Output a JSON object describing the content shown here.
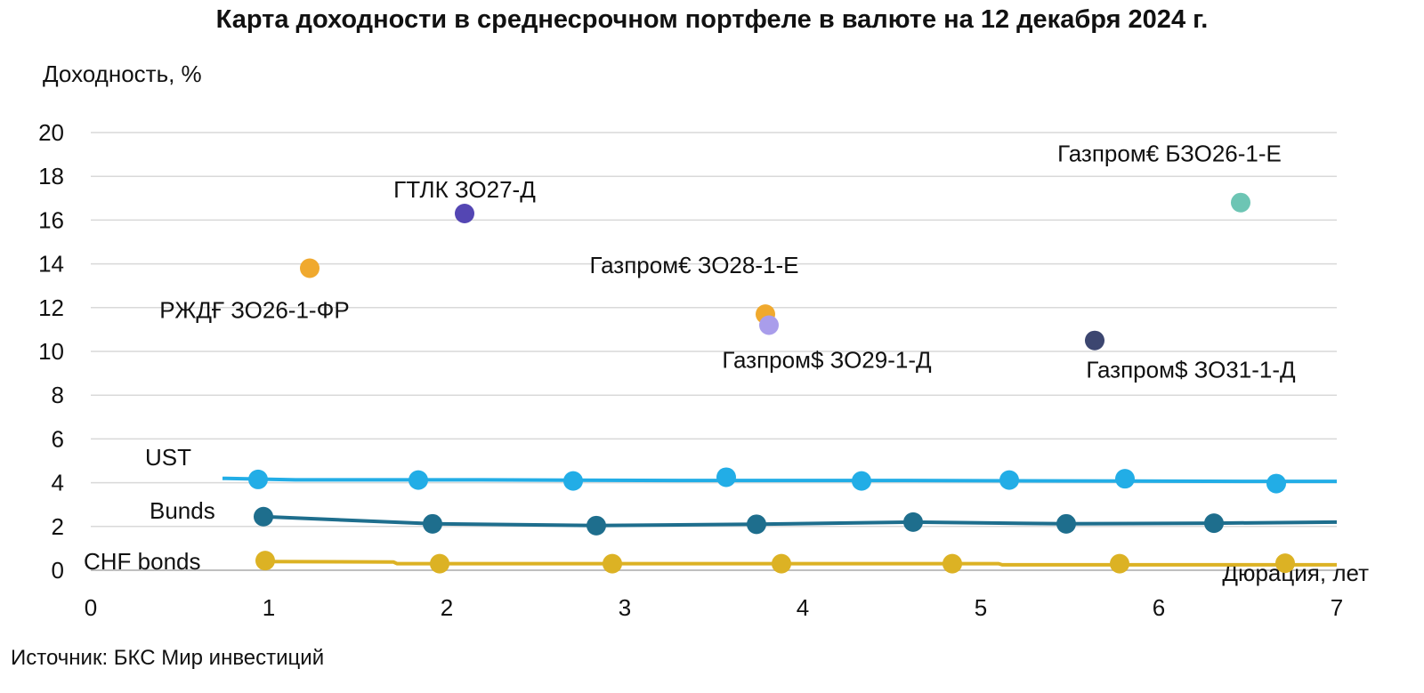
{
  "chart_data": {
    "type": "scatter",
    "title": "Карта доходности в среднесрочном портфеле в валюте на 12 декабря 2024 г.",
    "ylabel": "Доходность, %",
    "xlabel": "Дюрация, лет",
    "xlim": [
      0,
      7
    ],
    "ylim": [
      0,
      20
    ],
    "x_ticks": [
      0,
      1,
      2,
      3,
      4,
      5,
      6,
      7
    ],
    "y_ticks": [
      0,
      2,
      4,
      6,
      8,
      10,
      12,
      14,
      16,
      18,
      20
    ],
    "grid": "horizontal",
    "points": [
      {
        "label": "РЖДҒ ЗО26-1-ФР",
        "x": 1.23,
        "y": 13.8,
        "color": "#F0A92E",
        "label_pos": "below-left"
      },
      {
        "label": "ГТЛК ЗО27-Д",
        "x": 2.1,
        "y": 16.3,
        "color": "#5446B3",
        "label_pos": "above"
      },
      {
        "label": "Газпром€ ЗО28-1-Е",
        "x": 3.79,
        "y": 11.7,
        "color": "#F0A92E",
        "label_pos": "above-left"
      },
      {
        "label": "Газпром$ ЗО29-1-Д",
        "x": 3.81,
        "y": 11.2,
        "color": "#A99DEB",
        "label_pos": "below"
      },
      {
        "label": "Газпром$ ЗО31-1-Д",
        "x": 5.64,
        "y": 10.5,
        "color": "#3C4670",
        "label_pos": "below-right"
      },
      {
        "label": "Газпром€ БЗО26-1-Е",
        "x": 6.46,
        "y": 16.8,
        "color": "#6DC5B4",
        "label_pos": "above-left"
      }
    ],
    "series": [
      {
        "name": "UST",
        "color": "#22ADE6",
        "curve": [
          [
            0.74,
            4.2
          ],
          [
            1.15,
            4.13
          ],
          [
            2.2,
            4.13
          ],
          [
            3.3,
            4.1
          ],
          [
            4.4,
            4.1
          ],
          [
            5.5,
            4.08
          ],
          [
            6.5,
            4.06
          ],
          [
            7.0,
            4.06
          ]
        ],
        "markers": [
          [
            0.94,
            4.15
          ],
          [
            1.84,
            4.12
          ],
          [
            2.71,
            4.08
          ],
          [
            3.57,
            4.25
          ],
          [
            4.33,
            4.08
          ],
          [
            5.16,
            4.12
          ],
          [
            5.81,
            4.18
          ],
          [
            6.66,
            3.96
          ]
        ]
      },
      {
        "name": "Bunds",
        "color": "#1E6E8D",
        "curve": [
          [
            0.97,
            2.45
          ],
          [
            1.92,
            2.12
          ],
          [
            2.84,
            2.04
          ],
          [
            3.74,
            2.1
          ],
          [
            4.62,
            2.2
          ],
          [
            5.48,
            2.12
          ],
          [
            6.31,
            2.15
          ],
          [
            7.0,
            2.2
          ]
        ],
        "markers": [
          [
            0.97,
            2.45
          ],
          [
            1.92,
            2.12
          ],
          [
            2.84,
            2.04
          ],
          [
            3.74,
            2.1
          ],
          [
            4.62,
            2.2
          ],
          [
            5.48,
            2.12
          ],
          [
            6.31,
            2.15
          ]
        ]
      },
      {
        "name": "CHF bonds",
        "color": "#DCB224",
        "curve": [
          [
            0.98,
            0.4
          ],
          [
            1.7,
            0.38
          ],
          [
            1.72,
            0.3
          ],
          [
            5.1,
            0.3
          ],
          [
            5.12,
            0.25
          ],
          [
            7.0,
            0.25
          ]
        ],
        "markers": [
          [
            0.98,
            0.44
          ],
          [
            1.96,
            0.3
          ],
          [
            2.93,
            0.3
          ],
          [
            3.88,
            0.3
          ],
          [
            4.84,
            0.3
          ],
          [
            5.78,
            0.3
          ],
          [
            6.71,
            0.32
          ]
        ]
      }
    ]
  },
  "source_note": "Источник: БКС Мир инвестиций",
  "colors": {
    "grid": "#D9D9D9",
    "text": "#111111"
  }
}
